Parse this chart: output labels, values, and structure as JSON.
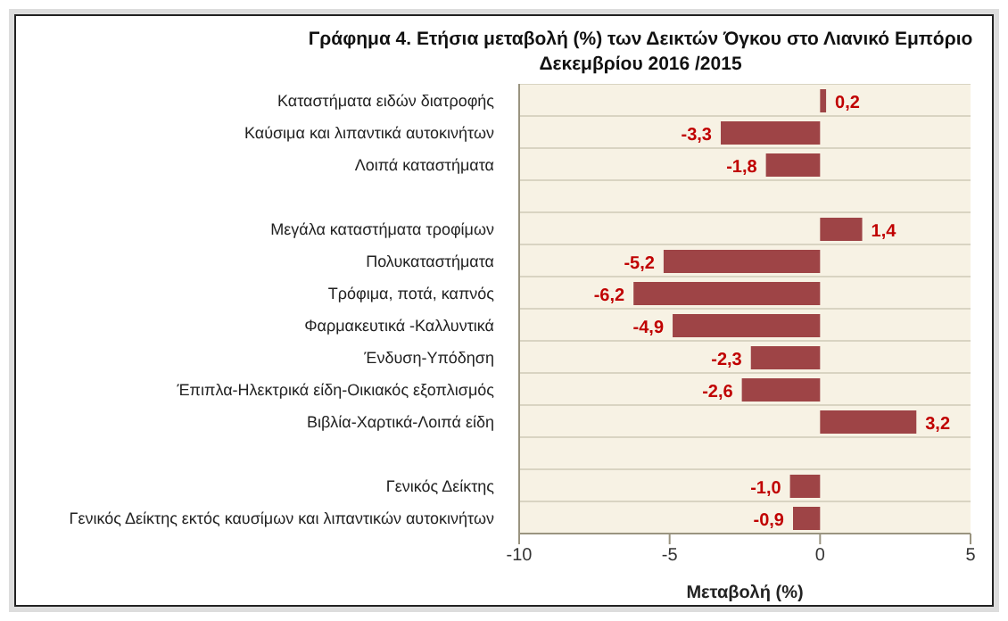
{
  "chart_data": {
    "type": "bar",
    "orientation": "horizontal",
    "title": "Γράφημα 4.  Ετήσια μεταβολή (%) των Δεικτών Όγκου στο Λιανικό Εμπόριο Δεκεμβρίου 2016 /2015",
    "xlabel": "Μεταβολή (%)",
    "categories": [
      "Καταστήματα ειδών διατροφής",
      "Καύσιμα και λιπαντικά αυτοκινήτων",
      "Λοιπά καταστήματα",
      null,
      "Μεγάλα καταστήματα τροφίμων",
      "Πολυκαταστήματα",
      "Τρόφιμα, ποτά, καπνός",
      "Φαρμακευτικά -Καλλυντικά",
      "Ένδυση-Υπόδηση",
      "Έπιπλα-Ηλεκτρικά είδη-Οικιακός εξοπλισμός",
      "Βιβλία-Χαρτικά-Λοιπά είδη",
      null,
      "Γενικός Δείκτης",
      "Γενικός Δείκτης εκτός καυσίμων και λιπαντικών αυτοκινήτων"
    ],
    "values": [
      0.2,
      -3.3,
      -1.8,
      null,
      1.4,
      -5.2,
      -6.2,
      -4.9,
      -2.3,
      -2.6,
      3.2,
      null,
      -1.0,
      -0.9
    ],
    "value_labels": [
      "0,2",
      "-3,3",
      "-1,8",
      null,
      "1,4",
      "-5,2",
      "-6,2",
      "-4,9",
      "-2,3",
      "-2,6",
      "3,2",
      null,
      "-1,0",
      "-0,9"
    ],
    "color": "#9e4446",
    "xlim": [
      -10,
      5
    ],
    "xticks": [
      -10,
      -5,
      0,
      5
    ],
    "grid": "y",
    "legend": false
  }
}
